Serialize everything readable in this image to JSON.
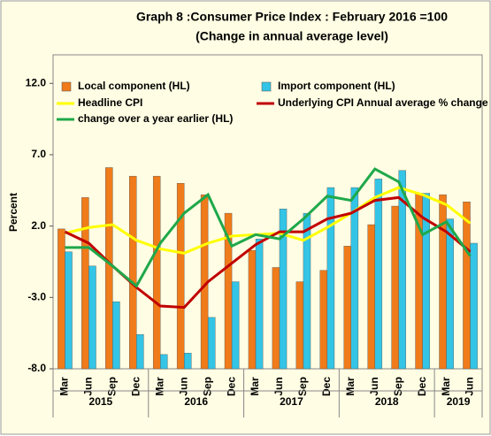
{
  "chart_data": {
    "type": "combo",
    "title": "Graph 8 :Consumer Price Index : February 2016 =100",
    "subtitle": "(Change in annual average level)",
    "y_label": "Percent",
    "categories": [
      "Mar",
      "Jun",
      "Sep",
      "Dec",
      "Mar",
      "Jun",
      "Sep",
      "Dec",
      "Mar",
      "Jun",
      "Sep",
      "Dec",
      "Mar",
      "Jun",
      "Sep",
      "Dec",
      "Mar",
      "Jun"
    ],
    "year_groups": [
      {
        "label": "2015",
        "span": 4
      },
      {
        "label": "2016",
        "span": 4
      },
      {
        "label": "2017",
        "span": 4
      },
      {
        "label": "2018",
        "span": 4
      },
      {
        "label": "2019",
        "span": 2
      }
    ],
    "ylim": [
      -8,
      14
    ],
    "yticks": [
      {
        "value": -8,
        "label": "-8.0"
      },
      {
        "value": -3,
        "label": "-3.0"
      },
      {
        "value": 2,
        "label": "2.0"
      },
      {
        "value": 7,
        "label": "7.0"
      },
      {
        "value": 12,
        "label": "12.0"
      }
    ],
    "series": [
      {
        "name": "Local component (HL)",
        "type": "bar",
        "color": "#f07b1a",
        "values": [
          1.8,
          4.0,
          6.1,
          5.5,
          5.5,
          5.0,
          4.2,
          2.9,
          0.3,
          -0.9,
          -1.9,
          -1.1,
          0.6,
          2.1,
          3.4,
          4.3,
          4.2,
          3.7
        ]
      },
      {
        "name": "Import component (HL)",
        "type": "bar",
        "color": "#33c4e6",
        "values": [
          0.2,
          -0.8,
          -3.3,
          -5.6,
          -7.0,
          -6.9,
          -4.4,
          -1.9,
          1.1,
          3.2,
          2.9,
          4.7,
          4.7,
          5.3,
          5.9,
          4.3,
          2.5,
          0.8
        ]
      },
      {
        "name": "Headline CPI",
        "type": "line",
        "color": "#ffff00",
        "values": [
          1.5,
          1.9,
          2.1,
          1.0,
          0.4,
          0.1,
          0.8,
          1.3,
          1.4,
          1.5,
          1.0,
          1.9,
          2.9,
          4.0,
          4.7,
          4.2,
          3.5,
          2.2
        ]
      },
      {
        "name": "Underlying CPI Annual average % change",
        "type": "line",
        "color": "#c00000",
        "values": [
          1.6,
          0.8,
          -0.8,
          -2.3,
          -3.6,
          -3.7,
          -1.9,
          -0.6,
          0.7,
          1.6,
          1.6,
          2.5,
          2.9,
          3.8,
          4.0,
          2.6,
          1.6,
          0.2
        ]
      },
      {
        "name": "change over a year earlier (HL)",
        "type": "line",
        "color": "#1fa84a",
        "values": [
          0.5,
          0.5,
          -0.8,
          -2.2,
          0.8,
          2.9,
          4.2,
          0.6,
          1.4,
          1.1,
          2.5,
          4.1,
          3.8,
          6.0,
          5.1,
          1.4,
          2.3,
          -0.1
        ]
      }
    ]
  }
}
